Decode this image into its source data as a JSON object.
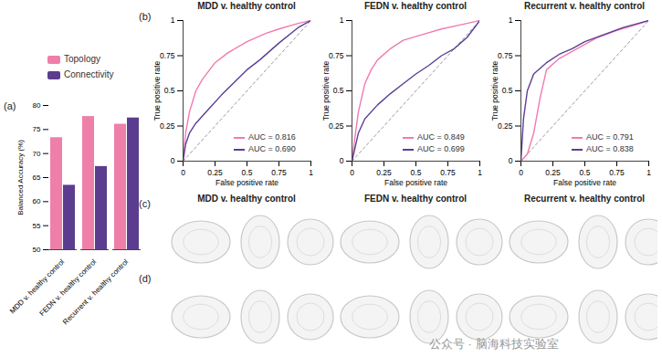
{
  "chart_data": [
    {
      "type": "bar",
      "annotations": [
        "(a)"
      ],
      "y_label": "Balanced Accuracy (%)",
      "categories": [
        "MDD v. healthy control",
        "FEDN v. healthy control",
        "Recurrent v. healthy control"
      ],
      "series": [
        {
          "name": "Topology",
          "color": "#ee7fa9",
          "values": [
            73.3,
            77.7,
            76.1
          ]
        },
        {
          "name": "Connectivity",
          "color": "#5a3d8f",
          "values": [
            63.4,
            67.3,
            77.4
          ]
        }
      ],
      "ylim": [
        50,
        80
      ],
      "yticks": [
        50,
        55,
        60,
        65,
        70,
        75,
        80
      ],
      "grid": false,
      "legend": "top"
    },
    {
      "type": "line",
      "annotations": [
        "(b)"
      ],
      "title": "MDD v. healthy control",
      "x_label": "False positive rate",
      "y_label": "True positive rate",
      "series": [
        {
          "name": "AUC = 0.816",
          "color": "#f27ab0",
          "x": [
            0,
            0.02,
            0.05,
            0.1,
            0.15,
            0.25,
            0.35,
            0.5,
            0.65,
            0.75,
            0.9,
            1
          ],
          "values": [
            0,
            0.2,
            0.35,
            0.5,
            0.58,
            0.7,
            0.77,
            0.85,
            0.91,
            0.94,
            0.98,
            1
          ]
        },
        {
          "name": "AUC = 0.690",
          "color": "#5b3e96",
          "x": [
            0,
            0.02,
            0.05,
            0.1,
            0.2,
            0.3,
            0.4,
            0.5,
            0.6,
            0.75,
            0.9,
            1
          ],
          "values": [
            0,
            0.12,
            0.2,
            0.27,
            0.37,
            0.47,
            0.56,
            0.65,
            0.72,
            0.84,
            0.95,
            1
          ]
        }
      ],
      "xlim": [
        0,
        1
      ],
      "ylim": [
        0,
        1
      ],
      "xticks": [
        0,
        0.25,
        0.5,
        0.75,
        1
      ],
      "yticks": [
        0,
        0.25,
        0.5,
        0.75,
        1
      ],
      "grid": false,
      "legend": "bottom-right"
    },
    {
      "type": "line",
      "title": "FEDN v. healthy control",
      "x_label": "False positive rate",
      "y_label": "True positive rate",
      "series": [
        {
          "name": "AUC = 0.849",
          "color": "#f27ab0",
          "x": [
            0,
            0.02,
            0.05,
            0.1,
            0.15,
            0.2,
            0.3,
            0.4,
            0.55,
            0.7,
            0.85,
            1
          ],
          "values": [
            0,
            0.15,
            0.35,
            0.55,
            0.65,
            0.72,
            0.8,
            0.86,
            0.9,
            0.94,
            0.97,
            1
          ]
        },
        {
          "name": "AUC = 0.699",
          "color": "#5b3e96",
          "x": [
            0,
            0.05,
            0.1,
            0.2,
            0.3,
            0.4,
            0.5,
            0.6,
            0.7,
            0.8,
            0.9,
            0.95,
            1
          ],
          "values": [
            0,
            0.2,
            0.3,
            0.4,
            0.48,
            0.55,
            0.62,
            0.68,
            0.75,
            0.8,
            0.88,
            0.94,
            1
          ]
        }
      ],
      "xlim": [
        0,
        1
      ],
      "ylim": [
        0,
        1
      ],
      "xticks": [
        0,
        0.25,
        0.5,
        0.75,
        1
      ],
      "yticks": [
        0,
        0.25,
        0.5,
        0.75,
        1
      ],
      "grid": false,
      "legend": "bottom-right"
    },
    {
      "type": "line",
      "title": "Recurrent v. healthy control",
      "x_label": "False positive rate",
      "y_label": "True positive rate",
      "series": [
        {
          "name": "AUC = 0.791",
          "color": "#f27ab0",
          "x": [
            0,
            0.05,
            0.1,
            0.15,
            0.2,
            0.3,
            0.4,
            0.5,
            0.6,
            0.75,
            0.9,
            1
          ],
          "values": [
            0,
            0.05,
            0.2,
            0.45,
            0.65,
            0.73,
            0.78,
            0.83,
            0.88,
            0.93,
            0.97,
            1
          ]
        },
        {
          "name": "AUC = 0.838",
          "color": "#5b3e96",
          "x": [
            0,
            0.02,
            0.05,
            0.1,
            0.2,
            0.3,
            0.4,
            0.5,
            0.65,
            0.8,
            1
          ],
          "values": [
            0,
            0.3,
            0.5,
            0.62,
            0.7,
            0.76,
            0.8,
            0.85,
            0.9,
            0.95,
            1
          ]
        }
      ],
      "xlim": [
        0,
        1
      ],
      "ylim": [
        0,
        1
      ],
      "xticks": [
        0,
        0.25,
        0.5,
        0.75,
        1
      ],
      "yticks": [
        0,
        0.25,
        0.5,
        0.75,
        1
      ],
      "grid": false,
      "legend": "bottom-right"
    }
  ],
  "brain_panels": [
    {
      "label": "(c)",
      "titles": [
        "MDD v. healthy control",
        "FEDN v. healthy control",
        "Recurrent v. healthy control"
      ]
    },
    {
      "label": "(d)"
    }
  ],
  "watermark": "公众号 · 脑海科技实验室"
}
